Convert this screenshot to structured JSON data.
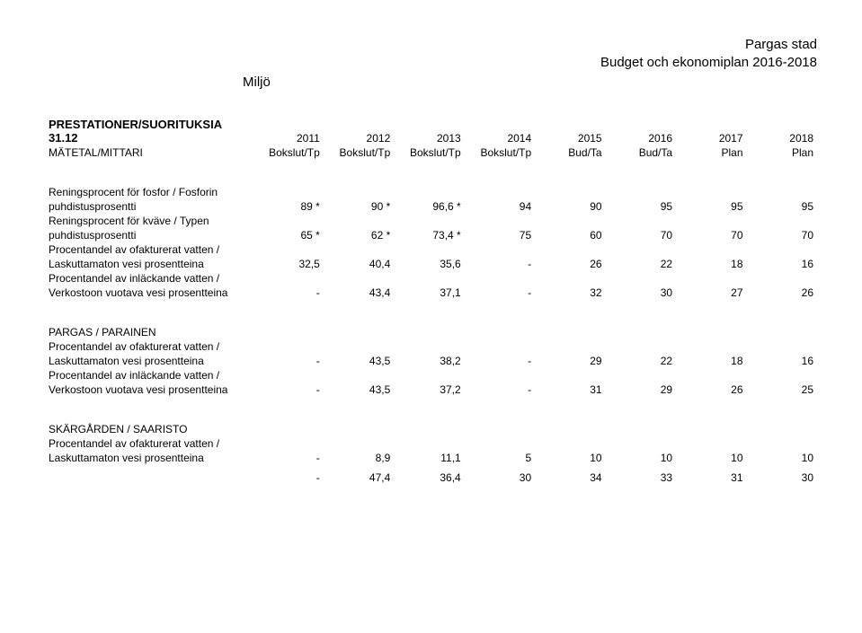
{
  "header": {
    "line1": "Pargas stad",
    "line2": "Budget och ekonomiplan 2016-2018",
    "section": "Miljö"
  },
  "prest": {
    "title": "PRESTATIONER/SUORITUKSIA 31.12"
  },
  "years": [
    "2011",
    "2012",
    "2013",
    "2014",
    "2015",
    "2016",
    "2017",
    "2018"
  ],
  "mittari": {
    "label": "MÄTETAL/MITTARI",
    "cols": [
      "Bokslut/Tp",
      "Bokslut/Tp",
      "Bokslut/Tp",
      "Bokslut/Tp",
      "Bud/Ta",
      "Bud/Ta",
      "Plan",
      "Plan"
    ]
  },
  "rows": {
    "r1": {
      "l1": "Reningsprocent för fosfor / Fosforin",
      "l2": "puhdistusprosentti",
      "v": [
        "89 *",
        "90 *",
        "96,6 *",
        "94",
        "90",
        "95",
        "95",
        "95"
      ]
    },
    "r2": {
      "l1": "Reningsprocent för kväve / Typen",
      "l2": "puhdistusprosentti",
      "v": [
        "65 *",
        "62 *",
        "73,4 *",
        "75",
        "60",
        "70",
        "70",
        "70"
      ]
    },
    "r3": {
      "l1": "Procentandel av ofakturerat vatten /",
      "l2": "Laskuttamaton vesi prosentteina",
      "v": [
        "32,5",
        "40,4",
        "35,6",
        "-",
        "26",
        "22",
        "18",
        "16"
      ]
    },
    "r4": {
      "l1": "Procentandel av inläckande vatten /",
      "l2": "Verkostoon vuotava vesi prosentteina",
      "v": [
        "-",
        "43,4",
        "37,1",
        "-",
        "32",
        "30",
        "27",
        "26"
      ]
    }
  },
  "sec2": {
    "title": "PARGAS / PARAINEN",
    "r1": {
      "l1": "Procentandel av ofakturerat vatten /",
      "l2": "Laskuttamaton vesi prosentteina",
      "v": [
        "-",
        "43,5",
        "38,2",
        "-",
        "29",
        "22",
        "18",
        "16"
      ]
    },
    "r2": {
      "l1": "Procentandel av inläckande vatten /",
      "l2": "Verkostoon vuotava vesi prosentteina",
      "v": [
        "-",
        "43,5",
        "37,2",
        "-",
        "31",
        "29",
        "26",
        "25"
      ]
    }
  },
  "sec3": {
    "title": "SKÄRGÅRDEN / SAARISTO",
    "r1": {
      "l1": "Procentandel av ofakturerat vatten /",
      "l2": "Laskuttamaton vesi prosentteina",
      "v": [
        "-",
        "8,9",
        "11,1",
        "5",
        "10",
        "10",
        "10",
        "10"
      ]
    },
    "r2": {
      "l1": "",
      "l2": "",
      "v": [
        "-",
        "47,4",
        "36,4",
        "30",
        "34",
        "33",
        "31",
        "30"
      ]
    }
  }
}
